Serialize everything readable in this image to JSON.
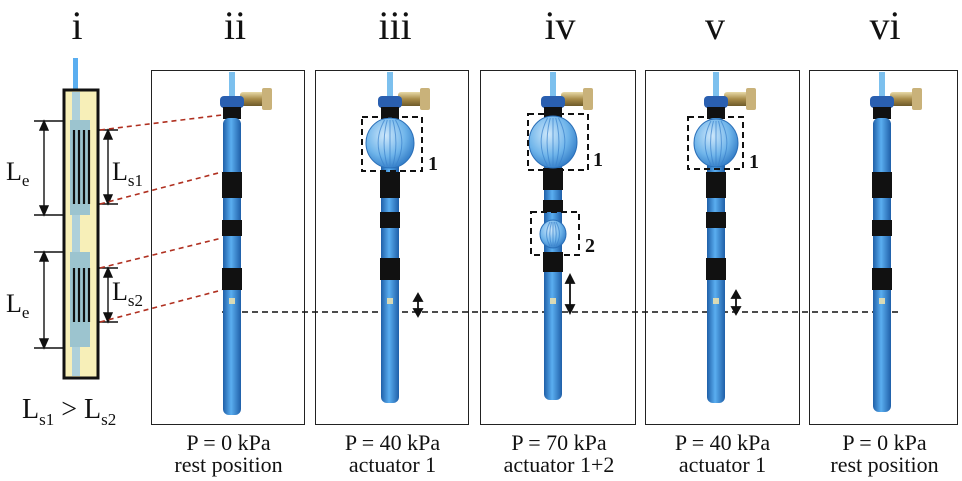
{
  "panels": [
    {
      "numeral": "i"
    },
    {
      "numeral": "ii",
      "pressure": "P = 0 kPa",
      "state": "rest position"
    },
    {
      "numeral": "iii",
      "pressure": "P = 40 kPa",
      "state": "actuator 1"
    },
    {
      "numeral": "iv",
      "pressure": "P = 70 kPa",
      "state": "actuator 1+2"
    },
    {
      "numeral": "v",
      "pressure": "P = 40 kPa",
      "state": "actuator 1"
    },
    {
      "numeral": "vi",
      "pressure": "P = 0 kPa",
      "state": "rest position"
    }
  ],
  "schematic": {
    "le_label": "L",
    "le_sub": "e",
    "ls1_label": "L",
    "ls1_sub": "s1",
    "ls2_label": "L",
    "ls2_sub": "s2",
    "relation_left": "L",
    "relation_left_sub": "s1",
    "relation_op": " > ",
    "relation_right": "L",
    "relation_right_sub": "s2"
  },
  "box_labels": {
    "one": "1",
    "two": "2"
  },
  "colors": {
    "tube": "#3a8fd8",
    "tube_dark": "#1f5fa8",
    "band": "#111111",
    "sleeve": "#f7efb8",
    "guide": "#b03020"
  }
}
